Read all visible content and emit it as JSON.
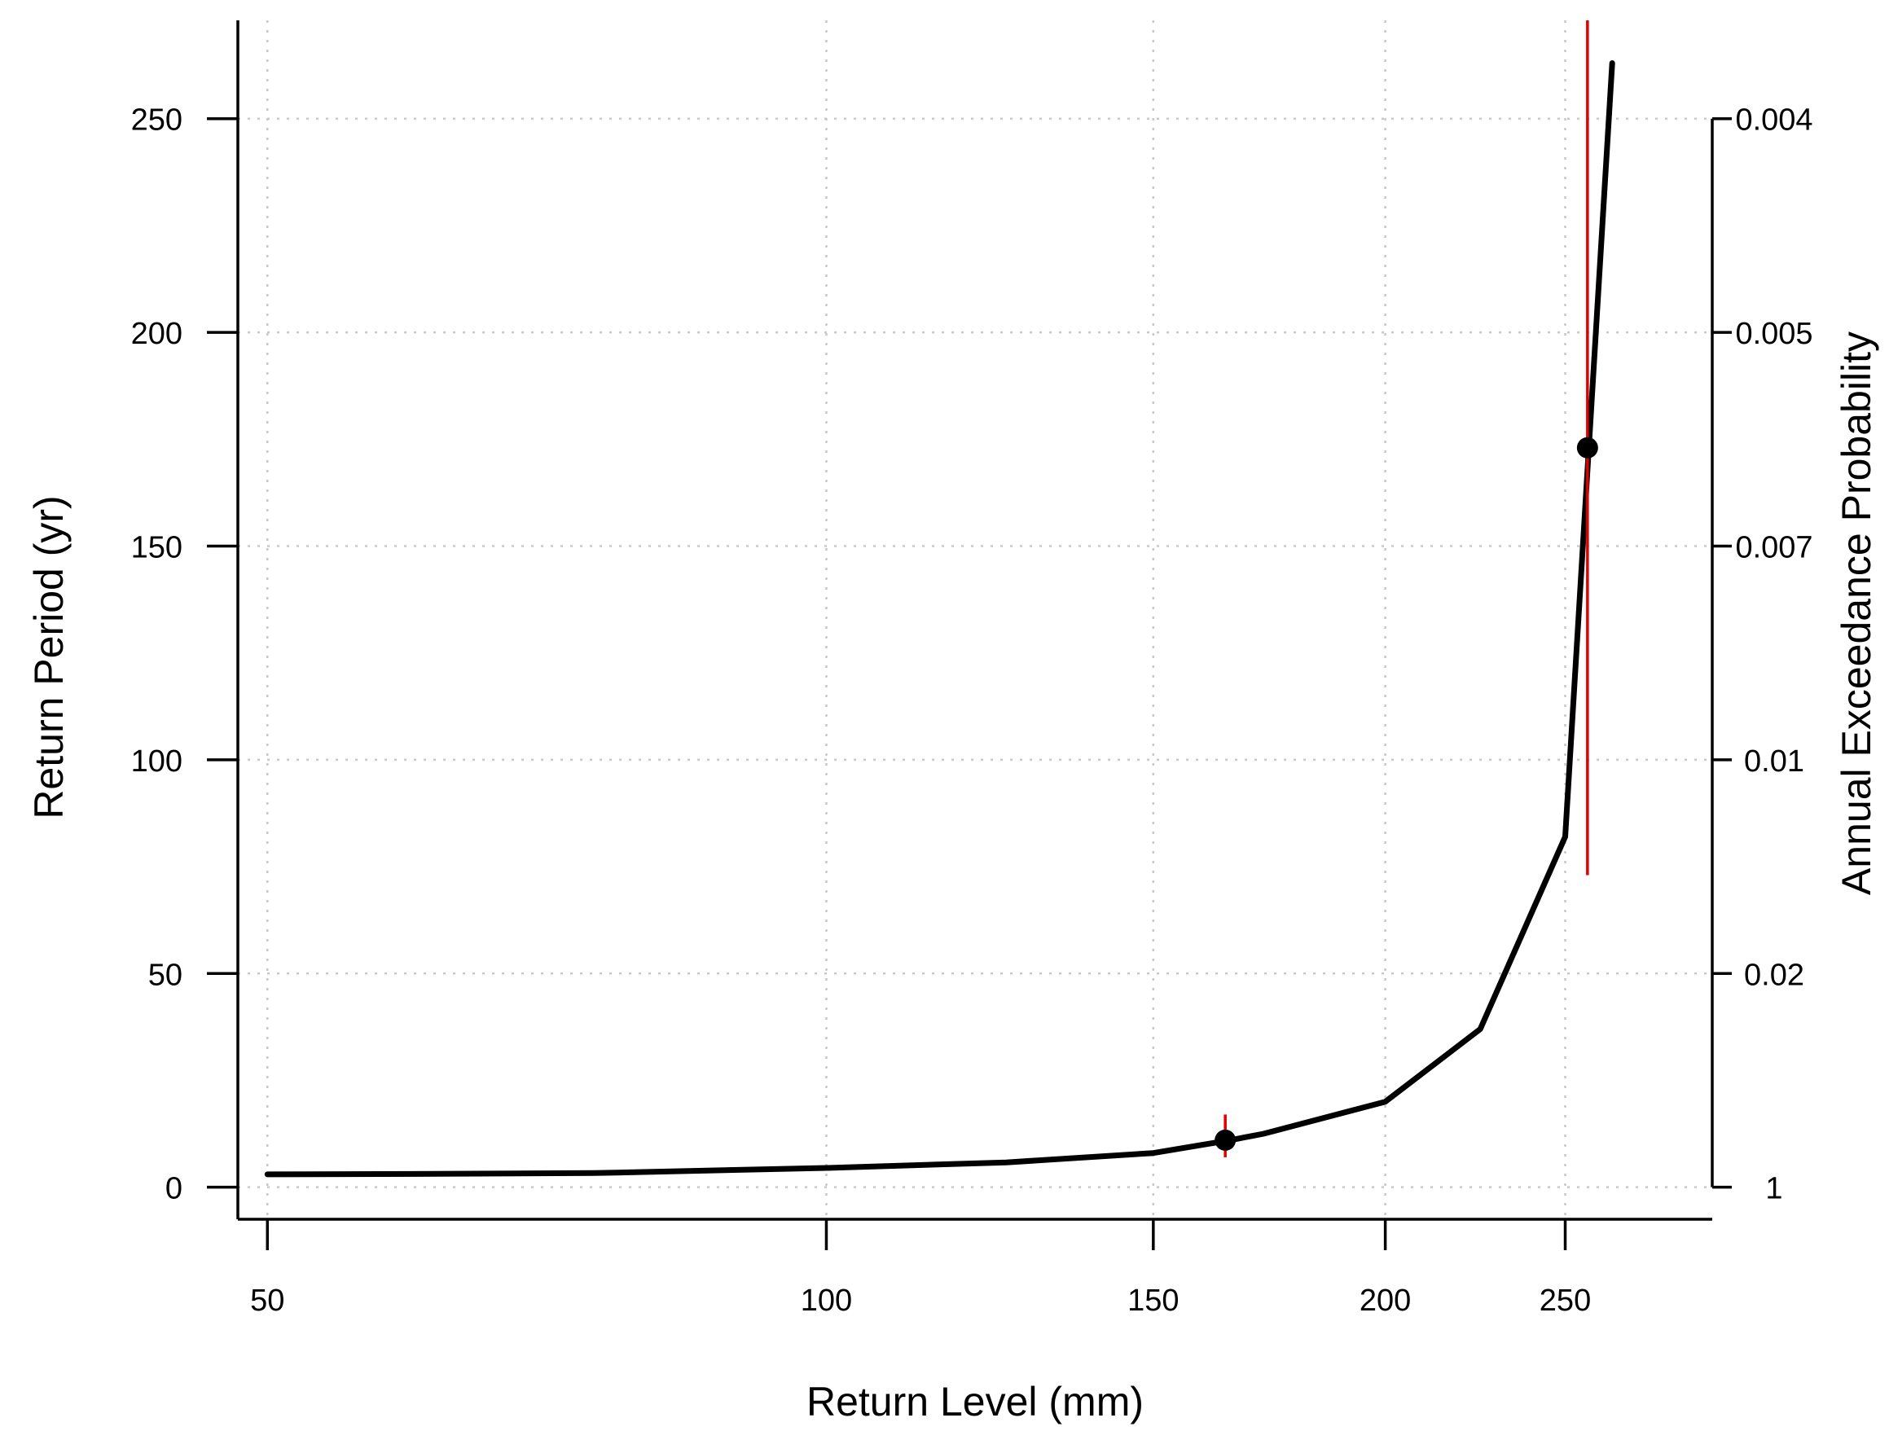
{
  "chart_data": {
    "type": "line",
    "title": "",
    "xlabel": "Return Level (mm)",
    "ylabel": "Return Period (yr)",
    "y2label": "Annual Exceedance Probability",
    "x_scale": "log",
    "xlim": [
      48.2,
      300
    ],
    "ylim": [
      -7.5,
      273
    ],
    "x_ticks": [
      50,
      100,
      150,
      200,
      250
    ],
    "y_ticks": [
      0,
      50,
      100,
      150,
      200,
      250
    ],
    "y2_ticks": [
      {
        "label": "0.004",
        "period": 250
      },
      {
        "label": "0.005",
        "period": 200
      },
      {
        "label": "0.007",
        "period": 150
      },
      {
        "label": "0.01",
        "period": 100
      },
      {
        "label": "0.02",
        "period": 50
      },
      {
        "label": "1",
        "period": 0
      }
    ],
    "grid": true,
    "series": [
      {
        "color": "#000000",
        "x": [
          50,
          60,
          75,
          100,
          125,
          150,
          165,
          172,
          200,
          225,
          250,
          265
        ],
        "y": [
          3,
          3.1,
          3.3,
          4.5,
          5.8,
          8,
          11,
          12.5,
          20,
          37,
          82,
          263
        ]
      }
    ],
    "points": [
      {
        "x": 164,
        "y": 11,
        "ci_low": 7,
        "ci_high": 17
      },
      {
        "x": 257,
        "y": 173,
        "ci_low": 73,
        "ci_high": 273
      }
    ],
    "ci_color": "#e00000",
    "point_color": "#000000"
  }
}
